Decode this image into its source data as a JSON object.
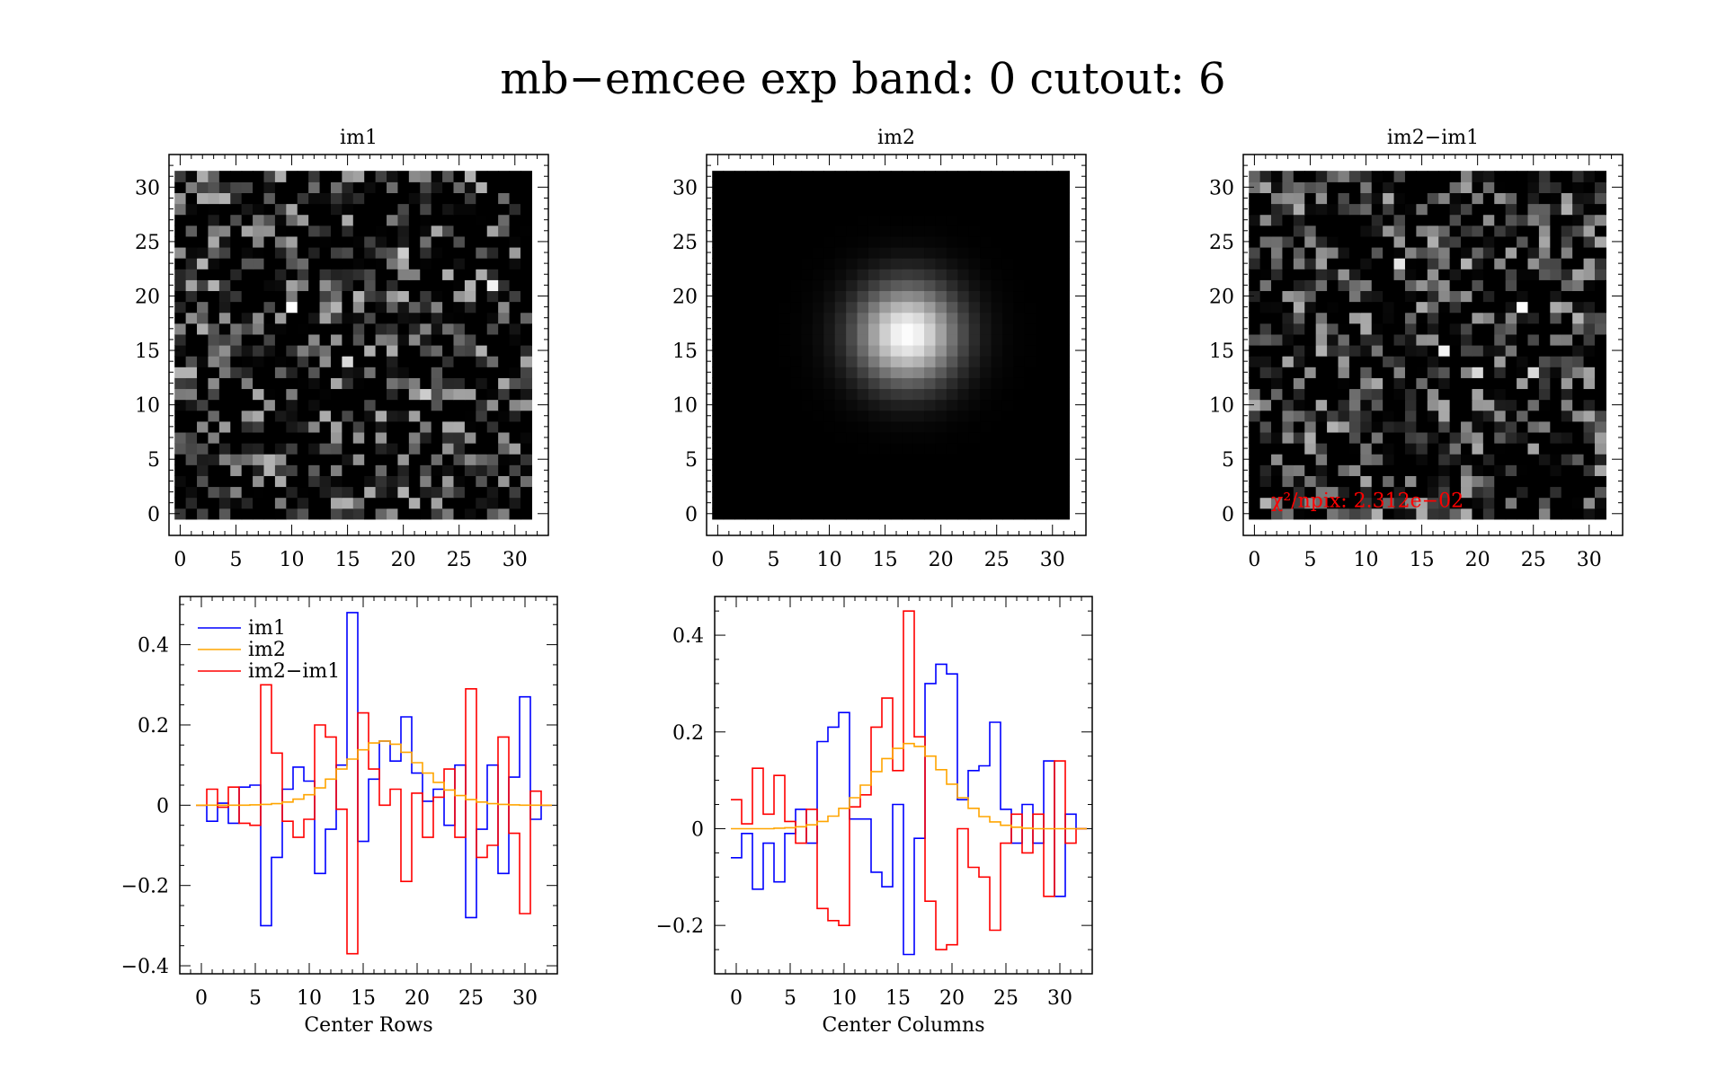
{
  "title": "mb−emcee exp band: 0 cutout: 6",
  "colors": {
    "im1": "#0000ff",
    "im2": "#ffa500",
    "diff": "#ff0000",
    "annotation": "#ff0000",
    "axes": "#000000"
  },
  "chart_data": [
    {
      "type": "heatmap",
      "title": "im1",
      "xlim": [
        -1,
        33
      ],
      "ylim": [
        -2,
        33
      ],
      "xticks": [
        "0",
        "5",
        "10",
        "15",
        "20",
        "25",
        "30"
      ],
      "yticks": [
        "0",
        "5",
        "10",
        "15",
        "20",
        "25",
        "30"
      ],
      "grid_size": [
        32,
        32
      ],
      "colormap": "grayscale",
      "description_level": "noise",
      "bright_pixels": [
        {
          "x": 10,
          "y": 19,
          "v": 1.0
        },
        {
          "x": 28,
          "y": 21,
          "v": 0.95
        },
        {
          "x": 15,
          "y": 14,
          "v": 0.85
        },
        {
          "x": 20,
          "y": 24,
          "v": 0.8
        },
        {
          "x": 22,
          "y": 11,
          "v": 0.8
        },
        {
          "x": 14,
          "y": 19,
          "v": 0.7
        }
      ]
    },
    {
      "type": "heatmap",
      "title": "im2",
      "xlim": [
        -1,
        33
      ],
      "ylim": [
        -2,
        33
      ],
      "xticks": [
        "0",
        "5",
        "10",
        "15",
        "20",
        "25",
        "30"
      ],
      "yticks": [
        "0",
        "5",
        "10",
        "15",
        "20",
        "25",
        "30"
      ],
      "grid_size": [
        32,
        32
      ],
      "colormap": "grayscale",
      "gaussian": {
        "center_x": 17,
        "center_y": 16.5,
        "sigma": 3.2
      }
    },
    {
      "type": "heatmap",
      "title": "im2−im1",
      "xlim": [
        -1,
        33
      ],
      "ylim": [
        -2,
        33
      ],
      "xticks": [
        "0",
        "5",
        "10",
        "15",
        "20",
        "25",
        "30"
      ],
      "yticks": [
        "0",
        "5",
        "10",
        "15",
        "20",
        "25",
        "30"
      ],
      "grid_size": [
        32,
        32
      ],
      "colormap": "grayscale",
      "annotation": "χ²/npix: 2.312e−02",
      "bright_pixels": [
        {
          "x": 24,
          "y": 19,
          "v": 1.0
        },
        {
          "x": 17,
          "y": 15,
          "v": 0.95
        },
        {
          "x": 13,
          "y": 23,
          "v": 0.9
        },
        {
          "x": 20,
          "y": 13,
          "v": 0.85
        },
        {
          "x": 25,
          "y": 13,
          "v": 0.85
        }
      ]
    },
    {
      "type": "line",
      "step": true,
      "xlabel": "Center Rows",
      "ylabel": "",
      "xlim": [
        -2,
        33
      ],
      "ylim": [
        -0.42,
        0.52
      ],
      "xticks": [
        0,
        5,
        10,
        15,
        20,
        25,
        30
      ],
      "yticks": [
        {
          "v": -0.4,
          "label": "−0.4"
        },
        {
          "v": -0.2,
          "label": "−0.2"
        },
        {
          "v": 0,
          "label": "0"
        },
        {
          "v": 0.2,
          "label": "0.2"
        },
        {
          "v": 0.4,
          "label": "0.4"
        }
      ],
      "legend": "top-left",
      "series": [
        {
          "name": "im1",
          "color": "#0000ff",
          "x": [
            0,
            1,
            2,
            3,
            4,
            5,
            6,
            7,
            8,
            9,
            10,
            11,
            12,
            13,
            14,
            15,
            16,
            17,
            18,
            19,
            20,
            21,
            22,
            23,
            24,
            25,
            26,
            27,
            28,
            29,
            30,
            31,
            32
          ],
          "values": [
            0,
            -0.04,
            0.005,
            -0.045,
            0.045,
            0.05,
            -0.3,
            -0.13,
            0.04,
            0.095,
            0.06,
            -0.17,
            -0.06,
            0.1,
            0.48,
            -0.09,
            0.065,
            0.16,
            0.11,
            0.22,
            0.08,
            0.01,
            0.04,
            -0.05,
            0.1,
            -0.28,
            -0.06,
            0.1,
            -0.17,
            0.07,
            0.27,
            -0.035,
            0.0
          ]
        },
        {
          "name": "im2",
          "color": "#ffa500",
          "x": [
            0,
            1,
            2,
            3,
            4,
            5,
            6,
            7,
            8,
            9,
            10,
            11,
            12,
            13,
            14,
            15,
            16,
            17,
            18,
            19,
            20,
            21,
            22,
            23,
            24,
            25,
            26,
            27,
            28,
            29,
            30,
            31,
            32
          ],
          "values": [
            0,
            0,
            0,
            0,
            0,
            0.001,
            0.002,
            0.004,
            0.008,
            0.015,
            0.026,
            0.043,
            0.065,
            0.09,
            0.115,
            0.138,
            0.155,
            0.16,
            0.152,
            0.132,
            0.106,
            0.08,
            0.057,
            0.038,
            0.024,
            0.014,
            0.008,
            0.004,
            0.002,
            0.001,
            0,
            0,
            0
          ]
        },
        {
          "name": "im2−im1",
          "color": "#ff0000",
          "x": [
            0,
            1,
            2,
            3,
            4,
            5,
            6,
            7,
            8,
            9,
            10,
            11,
            12,
            13,
            14,
            15,
            16,
            17,
            18,
            19,
            20,
            21,
            22,
            23,
            24,
            25,
            26,
            27,
            28,
            29,
            30,
            31,
            32
          ],
          "values": [
            0,
            0.04,
            -0.005,
            0.045,
            -0.045,
            -0.05,
            0.3,
            0.13,
            -0.04,
            -0.08,
            -0.035,
            0.2,
            0.17,
            -0.01,
            -0.37,
            0.23,
            0.09,
            0.0,
            0.04,
            -0.19,
            0.03,
            -0.08,
            0.02,
            0.09,
            -0.08,
            0.29,
            -0.13,
            -0.1,
            0.17,
            -0.07,
            -0.27,
            0.035,
            0.0
          ]
        }
      ]
    },
    {
      "type": "line",
      "step": true,
      "xlabel": "Center Columns",
      "ylabel": "",
      "xlim": [
        -2,
        33
      ],
      "ylim": [
        -0.3,
        0.48
      ],
      "xticks": [
        0,
        5,
        10,
        15,
        20,
        25,
        30
      ],
      "yticks": [
        {
          "v": -0.2,
          "label": "−0.2"
        },
        {
          "v": 0,
          "label": "0"
        },
        {
          "v": 0.2,
          "label": "0.2"
        },
        {
          "v": 0.4,
          "label": "0.4"
        }
      ],
      "series": [
        {
          "name": "im1",
          "color": "#0000ff",
          "x": [
            0,
            1,
            2,
            3,
            4,
            5,
            6,
            7,
            8,
            9,
            10,
            11,
            12,
            13,
            14,
            15,
            16,
            17,
            18,
            19,
            20,
            21,
            22,
            23,
            24,
            25,
            26,
            27,
            28,
            29,
            30,
            31,
            32
          ],
          "values": [
            -0.06,
            -0.01,
            -0.125,
            -0.03,
            -0.11,
            -0.01,
            0.04,
            -0.03,
            0.18,
            0.21,
            0.24,
            0.02,
            0.02,
            -0.09,
            -0.12,
            0.05,
            -0.26,
            -0.02,
            0.3,
            0.34,
            0.32,
            0.06,
            0.12,
            0.13,
            0.22,
            0.04,
            -0.03,
            0.05,
            -0.03,
            0.14,
            -0.14,
            0.03,
            0.0
          ]
        },
        {
          "name": "im2",
          "color": "#ffa500",
          "x": [
            0,
            1,
            2,
            3,
            4,
            5,
            6,
            7,
            8,
            9,
            10,
            11,
            12,
            13,
            14,
            15,
            16,
            17,
            18,
            19,
            20,
            21,
            22,
            23,
            24,
            25,
            26,
            27,
            28,
            29,
            30,
            31,
            32
          ],
          "values": [
            0,
            0,
            0,
            0,
            0.001,
            0.002,
            0.004,
            0.008,
            0.015,
            0.026,
            0.042,
            0.064,
            0.09,
            0.118,
            0.145,
            0.166,
            0.176,
            0.17,
            0.15,
            0.122,
            0.092,
            0.064,
            0.042,
            0.025,
            0.014,
            0.007,
            0.003,
            0.001,
            0,
            0,
            0,
            0,
            0
          ]
        },
        {
          "name": "im2−im1",
          "color": "#ff0000",
          "x": [
            0,
            1,
            2,
            3,
            4,
            5,
            6,
            7,
            8,
            9,
            10,
            11,
            12,
            13,
            14,
            15,
            16,
            17,
            18,
            19,
            20,
            21,
            22,
            23,
            24,
            25,
            26,
            27,
            28,
            29,
            30,
            31,
            32
          ],
          "values": [
            0.06,
            0.01,
            0.125,
            0.03,
            0.11,
            0.015,
            -0.03,
            0.04,
            -0.165,
            -0.19,
            -0.2,
            0.045,
            0.07,
            0.21,
            0.27,
            0.12,
            0.45,
            0.19,
            -0.15,
            -0.25,
            -0.24,
            0.0,
            -0.08,
            -0.1,
            -0.21,
            -0.03,
            0.03,
            -0.05,
            0.03,
            -0.14,
            0.14,
            -0.03,
            0.0
          ]
        }
      ]
    }
  ]
}
